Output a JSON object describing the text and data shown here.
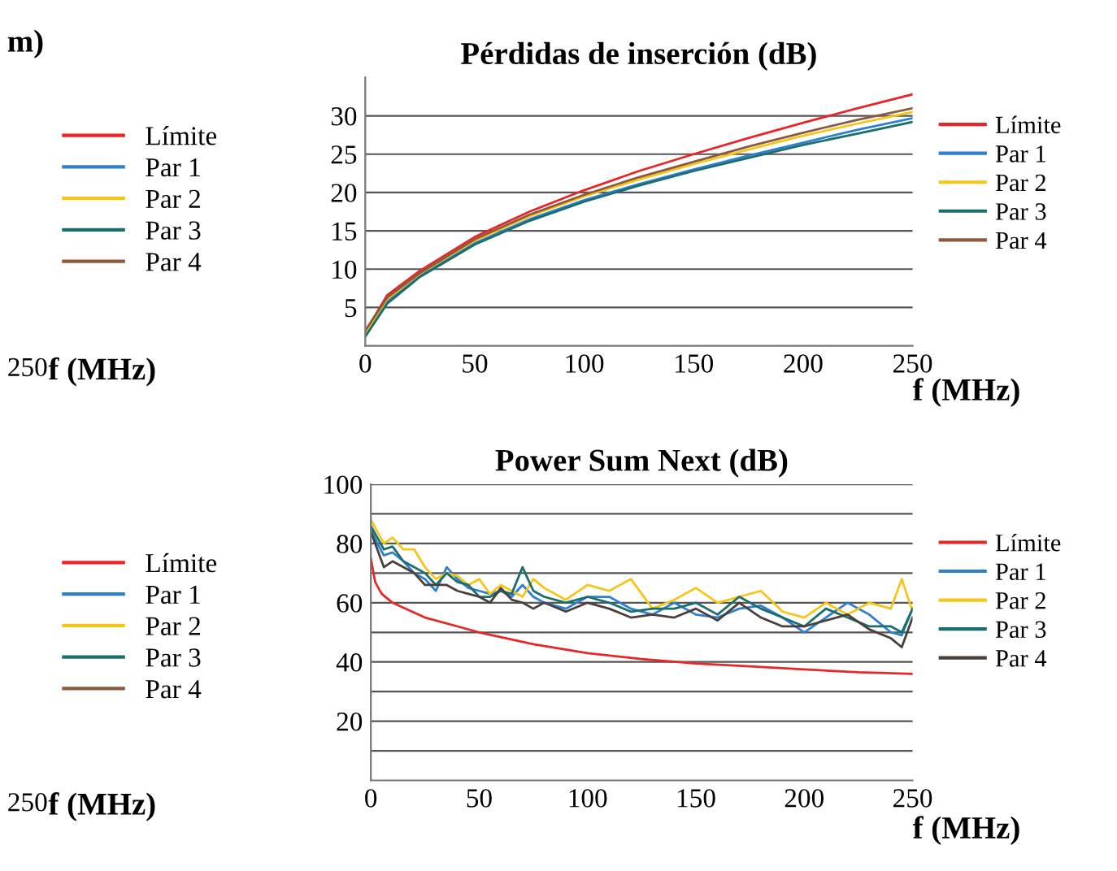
{
  "chart_data": [
    {
      "type": "other",
      "title": "m)",
      "annotations": [
        "250"
      ],
      "xlabel": "f (MHz)",
      "legend": "right",
      "series": [
        {
          "name": "Límite",
          "color": "#e8262a"
        },
        {
          "name": "Par 1",
          "color": "#2f7fd0"
        },
        {
          "name": "Par 2",
          "color": "#f5c518"
        },
        {
          "name": "Par 3",
          "color": "#1a6e6e"
        },
        {
          "name": "Par 4",
          "color": "#8b5a3c"
        }
      ]
    },
    {
      "type": "line",
      "title": "Pérdidas de inserción (dB)",
      "xlabel": "f (MHz)",
      "legend": "right",
      "grid": "y",
      "x": [
        0,
        10,
        25,
        50,
        75,
        100,
        125,
        150,
        175,
        200,
        225,
        250
      ],
      "xlim": [
        0,
        250
      ],
      "xticks": [
        0,
        50,
        100,
        150,
        200,
        250
      ],
      "ylim": [
        0,
        35
      ],
      "yticks": [
        5,
        10,
        15,
        20,
        25,
        30
      ],
      "series": [
        {
          "name": "Límite",
          "color": "#e8262a",
          "values": [
            1.8,
            6.6,
            9.8,
            14.2,
            17.5,
            20.3,
            22.8,
            25.0,
            27.1,
            29.1,
            31.0,
            32.8
          ]
        },
        {
          "name": "Par 1",
          "color": "#2f7fd0",
          "values": [
            1.5,
            5.8,
            9.2,
            13.4,
            16.5,
            19.0,
            21.1,
            23.0,
            24.8,
            26.5,
            28.2,
            29.7
          ]
        },
        {
          "name": "Par 2",
          "color": "#f5c518",
          "values": [
            1.7,
            6.1,
            9.4,
            13.7,
            16.9,
            19.5,
            21.7,
            23.7,
            25.6,
            27.4,
            29.0,
            30.5
          ]
        },
        {
          "name": "Par 3",
          "color": "#1a6e6e",
          "values": [
            1.2,
            5.5,
            9.0,
            13.2,
            16.3,
            18.8,
            20.9,
            22.8,
            24.5,
            26.2,
            27.7,
            29.2
          ]
        },
        {
          "name": "Par 4",
          "color": "#8b5a3c",
          "values": [
            2.0,
            6.3,
            9.5,
            13.9,
            17.1,
            19.7,
            22.0,
            24.0,
            26.0,
            27.8,
            29.5,
            31.0
          ]
        }
      ]
    },
    {
      "type": "other",
      "annotations": [
        "250"
      ],
      "xlabel": "f (MHz)",
      "legend": "right",
      "series": [
        {
          "name": "Límite",
          "color": "#e8262a"
        },
        {
          "name": "Par 1",
          "color": "#2f7fd0"
        },
        {
          "name": "Par 2",
          "color": "#f5c518"
        },
        {
          "name": "Par 3",
          "color": "#1a6e6e"
        },
        {
          "name": "Par 4",
          "color": "#8b5a3c"
        }
      ]
    },
    {
      "type": "line",
      "title": "Power Sum Next (dB)",
      "xlabel": "f (MHz)",
      "legend": "right",
      "grid": "y",
      "x": [
        0,
        3,
        6,
        10,
        15,
        20,
        25,
        30,
        35,
        40,
        45,
        50,
        55,
        60,
        65,
        70,
        75,
        80,
        90,
        100,
        110,
        120,
        130,
        140,
        150,
        160,
        170,
        180,
        190,
        200,
        210,
        220,
        230,
        240,
        245,
        250
      ],
      "xlim": [
        0,
        250
      ],
      "xticks": [
        0,
        50,
        100,
        150,
        200,
        250
      ],
      "ylim": [
        0,
        100
      ],
      "yticks": [
        {
          "value": 10,
          "label": null
        },
        20,
        {
          "value": 30,
          "label": null
        },
        40,
        {
          "value": 50,
          "label": null
        },
        60,
        {
          "value": 70,
          "label": null
        },
        80,
        {
          "value": 90,
          "label": null
        },
        100
      ],
      "series": [
        {
          "name": "Límite",
          "color": "#e8262a",
          "x": [
            0,
            2,
            5,
            10,
            25,
            50,
            75,
            100,
            125,
            150,
            175,
            200,
            225,
            250
          ],
          "values": [
            75,
            67,
            63,
            60,
            55,
            50,
            46,
            43,
            41,
            39.5,
            38.5,
            37.5,
            36.5,
            36
          ]
        },
        {
          "name": "Par 1",
          "color": "#2f7fd0",
          "values": [
            85,
            80,
            76,
            77,
            74,
            70,
            68,
            64,
            72,
            68,
            65,
            64,
            63,
            64,
            62,
            66,
            62,
            60,
            58,
            62,
            62,
            58,
            56,
            60,
            56,
            55,
            58,
            59,
            55,
            50,
            55,
            60,
            56,
            50,
            49,
            58
          ]
        },
        {
          "name": "Par 2",
          "color": "#f5c518",
          "values": [
            88,
            84,
            80,
            82,
            78,
            78,
            72,
            68,
            70,
            69,
            66,
            68,
            63,
            66,
            64,
            62,
            68,
            65,
            61,
            66,
            64,
            68,
            58,
            61,
            65,
            60,
            62,
            64,
            57,
            55,
            60,
            56,
            60,
            58,
            68,
            57
          ]
        },
        {
          "name": "Par 3",
          "color": "#1a6e6e",
          "values": [
            86,
            82,
            78,
            79,
            74,
            72,
            70,
            66,
            70,
            67,
            66,
            62,
            62,
            64,
            63,
            72,
            64,
            62,
            60,
            62,
            60,
            57,
            58,
            58,
            60,
            56,
            62,
            58,
            55,
            52,
            58,
            55,
            52,
            52,
            50,
            58
          ]
        },
        {
          "name": "Par 4",
          "color": "#4a3f3a",
          "values": [
            84,
            78,
            72,
            74,
            72,
            70,
            66,
            66,
            66,
            64,
            63,
            62,
            60,
            65,
            61,
            60,
            58,
            60,
            57,
            60,
            58,
            55,
            56,
            55,
            58,
            54,
            60,
            55,
            52,
            52,
            54,
            56,
            51,
            48,
            45,
            55
          ]
        }
      ]
    }
  ]
}
